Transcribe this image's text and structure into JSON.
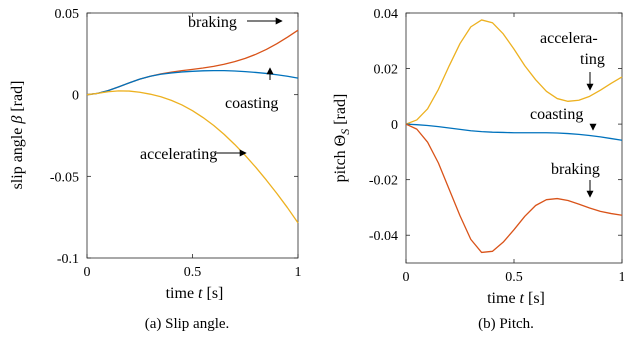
{
  "chart_data": [
    {
      "type": "line",
      "caption": "(a)  Slip angle.",
      "xlabel": "time t [s]",
      "ylabel": "slip angle β [rad]",
      "xlim": [
        0,
        1
      ],
      "ylim": [
        -0.1,
        0.05
      ],
      "x_ticks": [
        0,
        0.5,
        1
      ],
      "x_tick_labels": [
        "0",
        "0.5",
        "1"
      ],
      "y_ticks": [
        0.05,
        0,
        -0.05,
        -0.1
      ],
      "y_tick_labels": [
        "0.05",
        "0",
        "-0.05",
        "-0.1"
      ],
      "grid": false,
      "series": [
        {
          "name": "braking",
          "color": "#d95319",
          "x": [
            0,
            0.05,
            0.1,
            0.15,
            0.2,
            0.25,
            0.3,
            0.35,
            0.4,
            0.45,
            0.5,
            0.55,
            0.6,
            0.65,
            0.7,
            0.75,
            0.8,
            0.85,
            0.9,
            0.95,
            1.0
          ],
          "y": [
            0,
            0.0008,
            0.0025,
            0.0048,
            0.0072,
            0.0095,
            0.0113,
            0.0127,
            0.0138,
            0.0147,
            0.0155,
            0.0163,
            0.0173,
            0.0186,
            0.0202,
            0.0222,
            0.0247,
            0.0277,
            0.0312,
            0.0352,
            0.0395
          ]
        },
        {
          "name": "coasting",
          "color": "#0072bd",
          "x": [
            0,
            0.05,
            0.1,
            0.15,
            0.2,
            0.25,
            0.3,
            0.35,
            0.4,
            0.45,
            0.5,
            0.55,
            0.6,
            0.65,
            0.7,
            0.75,
            0.8,
            0.85,
            0.9,
            0.95,
            1.0
          ],
          "y": [
            0,
            0.0008,
            0.0025,
            0.0048,
            0.0072,
            0.0095,
            0.0113,
            0.0125,
            0.0133,
            0.0139,
            0.0143,
            0.0146,
            0.0147,
            0.0147,
            0.0145,
            0.0141,
            0.0136,
            0.013,
            0.0122,
            0.0113,
            0.0101
          ]
        },
        {
          "name": "accelerating",
          "color": "#edb120",
          "x": [
            0,
            0.05,
            0.1,
            0.15,
            0.2,
            0.25,
            0.3,
            0.35,
            0.4,
            0.45,
            0.5,
            0.55,
            0.6,
            0.65,
            0.7,
            0.75,
            0.8,
            0.85,
            0.9,
            0.95,
            1.0
          ],
          "y": [
            0,
            0.0008,
            0.0018,
            0.0023,
            0.0022,
            0.0015,
            0.0003,
            -0.0013,
            -0.0035,
            -0.0063,
            -0.0098,
            -0.014,
            -0.0188,
            -0.0243,
            -0.0305,
            -0.0372,
            -0.0445,
            -0.0523,
            -0.0605,
            -0.0692,
            -0.0785
          ]
        }
      ],
      "annotations": [
        {
          "text": "braking",
          "series": "braking",
          "at_x": 0.93
        },
        {
          "text": "coasting",
          "series": "coasting",
          "at_x": 0.87
        },
        {
          "text": "accelerating",
          "series": "accelerating",
          "at_x": 0.76
        }
      ]
    },
    {
      "type": "line",
      "caption": "(b)  Pitch.",
      "xlabel": "time t [s]",
      "ylabel": "pitch Θ_S [rad]",
      "xlim": [
        0,
        1
      ],
      "ylim": [
        -0.05,
        0.04
      ],
      "x_ticks": [
        0,
        0.5,
        1
      ],
      "x_tick_labels": [
        "0",
        "0.5",
        "1"
      ],
      "y_ticks": [
        0.04,
        0.02,
        0,
        -0.02,
        -0.04
      ],
      "y_tick_labels": [
        "0.04",
        "0.02",
        "0",
        "-0.02",
        "-0.04"
      ],
      "grid": false,
      "series": [
        {
          "name": "accelerating",
          "color": "#edb120",
          "x": [
            0,
            0.05,
            0.1,
            0.15,
            0.2,
            0.25,
            0.3,
            0.35,
            0.4,
            0.45,
            0.5,
            0.55,
            0.6,
            0.65,
            0.7,
            0.75,
            0.8,
            0.85,
            0.9,
            0.95,
            1.0
          ],
          "y": [
            0,
            0.0015,
            0.0055,
            0.0125,
            0.021,
            0.029,
            0.035,
            0.0375,
            0.0365,
            0.0325,
            0.027,
            0.021,
            0.016,
            0.0118,
            0.0092,
            0.0082,
            0.0086,
            0.01,
            0.0122,
            0.0147,
            0.017
          ]
        },
        {
          "name": "coasting",
          "color": "#0072bd",
          "x": [
            0,
            0.05,
            0.1,
            0.15,
            0.2,
            0.25,
            0.3,
            0.35,
            0.4,
            0.45,
            0.5,
            0.55,
            0.6,
            0.65,
            0.7,
            0.75,
            0.8,
            0.85,
            0.9,
            0.95,
            1.0
          ],
          "y": [
            0,
            -0.0002,
            -0.0005,
            -0.0009,
            -0.0014,
            -0.0019,
            -0.0024,
            -0.0027,
            -0.0029,
            -0.003,
            -0.0031,
            -0.0031,
            -0.0031,
            -0.0031,
            -0.0032,
            -0.0034,
            -0.0037,
            -0.0041,
            -0.0046,
            -0.0052,
            -0.0058
          ]
        },
        {
          "name": "braking",
          "color": "#d95319",
          "x": [
            0,
            0.05,
            0.1,
            0.15,
            0.2,
            0.25,
            0.3,
            0.35,
            0.4,
            0.45,
            0.5,
            0.55,
            0.6,
            0.65,
            0.7,
            0.75,
            0.8,
            0.85,
            0.9,
            0.95,
            1.0
          ],
          "y": [
            0,
            -0.0018,
            -0.0065,
            -0.014,
            -0.0235,
            -0.033,
            -0.0415,
            -0.0462,
            -0.0458,
            -0.0425,
            -0.038,
            -0.0332,
            -0.0293,
            -0.0272,
            -0.0268,
            -0.0275,
            -0.0288,
            -0.0302,
            -0.0314,
            -0.0322,
            -0.0328
          ]
        }
      ],
      "annotations": [
        {
          "text": "accelera-",
          "text2": "ting",
          "series": "accelerating",
          "at_x": 0.85
        },
        {
          "text": "coasting",
          "series": "coasting",
          "at_x": 0.86
        },
        {
          "text": "braking",
          "series": "braking",
          "at_x": 0.86
        }
      ]
    }
  ]
}
